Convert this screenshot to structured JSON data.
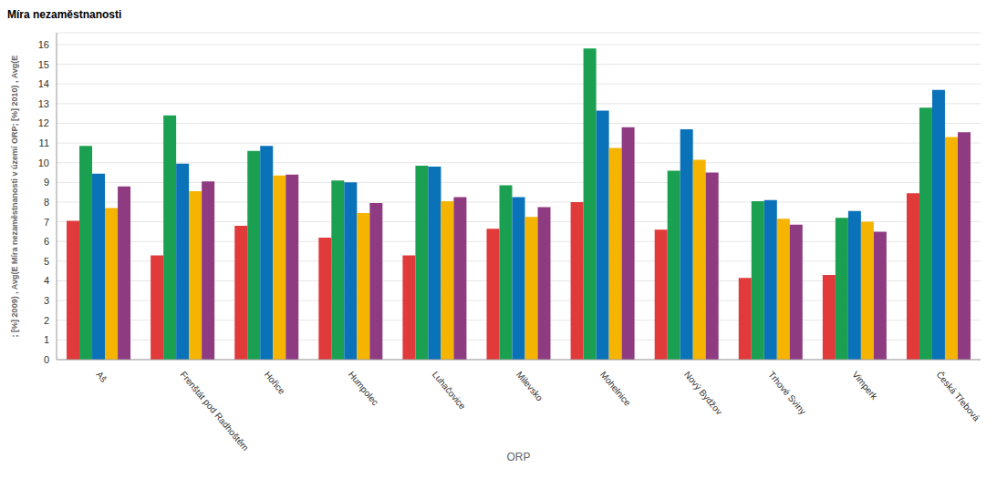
{
  "chart_data": {
    "type": "bar",
    "title": "Míra nezaměstnanosti",
    "x_label": "ORP",
    "y_label": "; [%] 2009) , Avg(E Míra nezaměstnanosti v území ORP; [%] 2010) , Avg(E",
    "categories": [
      "Aš",
      "Frenštát pod Radhoštěm",
      "Hořice",
      "Humpolec",
      "Luhačovice",
      "Milevsko",
      "Mohelnice",
      "Nový Bydžov",
      "Trhové Sviny",
      "Vimperk",
      "Česká Třebová"
    ],
    "series": [
      {
        "color": "#e03a3a",
        "values": [
          7.05,
          5.3,
          6.8,
          6.2,
          5.3,
          6.65,
          8.0,
          6.6,
          4.15,
          4.3,
          8.45
        ]
      },
      {
        "color": "#1aa050",
        "values": [
          10.85,
          12.4,
          10.6,
          9.1,
          9.85,
          8.85,
          15.8,
          9.6,
          8.05,
          7.2,
          12.8
        ]
      },
      {
        "color": "#0a72b8",
        "values": [
          9.45,
          9.95,
          10.85,
          9.0,
          9.8,
          8.25,
          12.65,
          11.7,
          8.1,
          7.55,
          13.7
        ]
      },
      {
        "color": "#f5b400",
        "values": [
          7.7,
          8.55,
          9.35,
          7.45,
          8.05,
          7.25,
          10.75,
          10.15,
          7.15,
          7.0,
          11.3
        ]
      },
      {
        "color": "#8e3b82",
        "values": [
          8.8,
          9.05,
          9.4,
          7.95,
          8.25,
          7.75,
          11.8,
          9.5,
          6.85,
          6.5,
          11.55
        ]
      }
    ],
    "ylim": [
      0,
      16.6
    ],
    "yticks": [
      0,
      1,
      2,
      3,
      4,
      5,
      6,
      7,
      8,
      9,
      10,
      11,
      12,
      13,
      14,
      15,
      16
    ],
    "grid": true,
    "legend": false
  }
}
